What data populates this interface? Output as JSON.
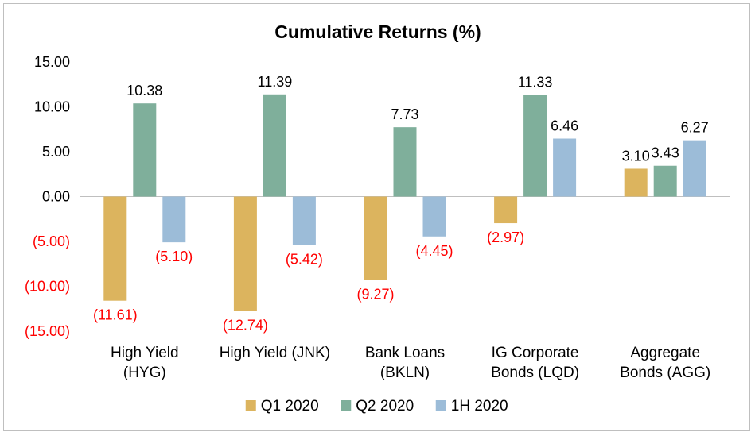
{
  "chart_data": {
    "type": "bar",
    "title": "Cumulative Returns (%)",
    "categories": [
      [
        "High Yield",
        "(HYG)"
      ],
      [
        "High Yield (JNK)"
      ],
      [
        "Bank Loans",
        "(BKLN)"
      ],
      [
        "IG Corporate",
        "Bonds (LQD)"
      ],
      [
        "Aggregate",
        "Bonds (AGG)"
      ]
    ],
    "series": [
      {
        "name": "Q1 2020",
        "color": "#DCB45E",
        "values": [
          -11.61,
          -12.74,
          -9.27,
          -2.97,
          3.1
        ],
        "labels": [
          "(11.61)",
          "(12.74)",
          "(9.27)",
          "(2.97)",
          "3.10"
        ]
      },
      {
        "name": "Q2 2020",
        "color": "#7FAF9B",
        "values": [
          10.38,
          11.39,
          7.73,
          11.33,
          3.43
        ],
        "labels": [
          "10.38",
          "11.39",
          "7.73",
          "11.33",
          "3.43"
        ]
      },
      {
        "name": "1H 2020",
        "color": "#9CBCD8",
        "values": [
          -5.1,
          -5.42,
          -4.45,
          6.46,
          6.27
        ],
        "labels": [
          "(5.10)",
          "(5.42)",
          "(4.45)",
          "6.46",
          "6.27"
        ]
      }
    ],
    "ylim": [
      -15,
      15
    ],
    "yticks": [
      15,
      10,
      5,
      0,
      -5,
      -10,
      -15
    ],
    "ytick_labels": [
      "15.00",
      "10.00",
      "5.00",
      "0.00",
      "(5.00)",
      "(10.00)",
      "(15.00)"
    ],
    "negative_color": "#FF0000",
    "positive_color": "#000000",
    "legend_position": "bottom",
    "grid": false
  }
}
